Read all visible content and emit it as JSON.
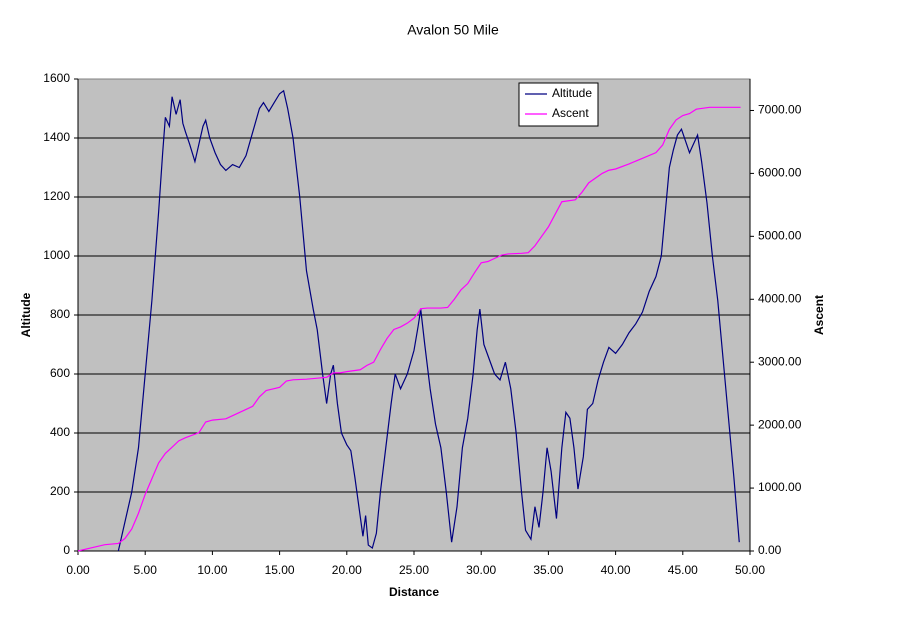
{
  "chart_data": {
    "type": "line",
    "title": "Avalon 50 Mile",
    "x_label": "Distance",
    "y_label": "Altitude",
    "y2_label": "Ascent",
    "xlim": [
      0,
      50
    ],
    "xticks": [
      {
        "value": 0,
        "label": "0.00"
      },
      {
        "value": 5,
        "label": "5.00"
      },
      {
        "value": 10,
        "label": "10.00"
      },
      {
        "value": 15,
        "label": "15.00"
      },
      {
        "value": 20,
        "label": "20.00"
      },
      {
        "value": 25,
        "label": "25.00"
      },
      {
        "value": 30,
        "label": "30.00"
      },
      {
        "value": 35,
        "label": "35.00"
      },
      {
        "value": 40,
        "label": "40.00"
      },
      {
        "value": 45,
        "label": "45.00"
      },
      {
        "value": 50,
        "label": "50.00"
      }
    ],
    "ylim": [
      0,
      1600
    ],
    "yticks": [
      0,
      200,
      400,
      600,
      800,
      1000,
      1200,
      1400,
      1600
    ],
    "y2lim": [
      0,
      7500
    ],
    "y2ticks": [
      {
        "value": 0,
        "label": "0.00"
      },
      {
        "value": 1000,
        "label": "1000.00"
      },
      {
        "value": 2000,
        "label": "2000.00"
      },
      {
        "value": 3000,
        "label": "3000.00"
      },
      {
        "value": 4000,
        "label": "4000.00"
      },
      {
        "value": 5000,
        "label": "5000.00"
      },
      {
        "value": 6000,
        "label": "6000.00"
      },
      {
        "value": 7000,
        "label": "7000.00"
      }
    ],
    "grid": true,
    "legend": "top-right",
    "series": [
      {
        "name": "Altitude",
        "color": "#000080",
        "x": [
          3.0,
          3.5,
          4.0,
          4.5,
          5.0,
          5.5,
          6.0,
          6.3,
          6.5,
          6.8,
          7.0,
          7.3,
          7.6,
          7.8,
          8.0,
          8.3,
          8.7,
          9.0,
          9.3,
          9.5,
          9.8,
          10.2,
          10.6,
          11.0,
          11.5,
          12.0,
          12.5,
          13.0,
          13.5,
          13.8,
          14.2,
          14.6,
          15.0,
          15.3,
          15.6,
          16.0,
          16.5,
          17.0,
          17.5,
          17.8,
          18.2,
          18.5,
          18.8,
          19.0,
          19.3,
          19.6,
          20.0,
          20.3,
          20.6,
          20.9,
          21.2,
          21.4,
          21.6,
          21.9,
          22.2,
          22.5,
          22.9,
          23.3,
          23.6,
          24.0,
          24.5,
          25.0,
          25.3,
          25.5,
          25.8,
          26.2,
          26.6,
          27.0,
          27.4,
          27.8,
          28.2,
          28.6,
          29.0,
          29.4,
          29.7,
          29.9,
          30.2,
          30.6,
          31.0,
          31.4,
          31.8,
          32.2,
          32.6,
          33.0,
          33.3,
          33.7,
          34.0,
          34.3,
          34.6,
          34.9,
          35.2,
          35.6,
          36.0,
          36.3,
          36.6,
          36.9,
          37.2,
          37.6,
          37.9,
          38.3,
          38.7,
          39.1,
          39.5,
          40.0,
          40.5,
          41.0,
          41.5,
          42.0,
          42.5,
          43.0,
          43.4,
          43.7,
          44.0,
          44.3,
          44.6,
          44.9,
          45.2,
          45.5,
          45.8,
          46.1,
          46.4,
          46.8,
          47.2,
          47.6,
          48.0,
          48.4,
          48.8,
          49.2
        ],
        "values": [
          0,
          100,
          200,
          350,
          600,
          850,
          1150,
          1350,
          1470,
          1440,
          1540,
          1480,
          1530,
          1450,
          1420,
          1380,
          1320,
          1380,
          1440,
          1460,
          1400,
          1350,
          1310,
          1290,
          1310,
          1300,
          1340,
          1420,
          1500,
          1520,
          1490,
          1520,
          1550,
          1560,
          1500,
          1400,
          1200,
          950,
          820,
          750,
          600,
          500,
          600,
          630,
          500,
          400,
          360,
          340,
          250,
          150,
          50,
          120,
          20,
          10,
          60,
          200,
          350,
          500,
          600,
          550,
          600,
          680,
          760,
          820,
          700,
          550,
          430,
          350,
          200,
          30,
          150,
          350,
          450,
          600,
          750,
          820,
          700,
          650,
          600,
          580,
          640,
          550,
          400,
          200,
          70,
          40,
          150,
          80,
          200,
          350,
          270,
          110,
          350,
          470,
          450,
          350,
          210,
          320,
          480,
          500,
          580,
          640,
          690,
          670,
          700,
          740,
          770,
          810,
          880,
          930,
          1000,
          1150,
          1300,
          1360,
          1410,
          1430,
          1390,
          1350,
          1380,
          1410,
          1320,
          1180,
          1000,
          850,
          650,
          450,
          250,
          30
        ]
      },
      {
        "name": "Ascent",
        "color": "#ff00ff",
        "axis": "y2",
        "x": [
          0,
          1,
          2,
          3,
          3.5,
          4,
          4.5,
          5,
          5.5,
          6,
          6.5,
          7,
          7.5,
          8,
          9,
          9.5,
          10,
          11,
          12,
          12.5,
          13,
          13.5,
          14,
          15,
          15.5,
          16,
          17,
          18,
          18.5,
          19,
          19.5,
          20,
          21,
          21.5,
          22,
          22.5,
          23,
          23.5,
          24,
          24.5,
          25,
          25.3,
          25.5,
          26,
          27,
          27.5,
          28,
          28.5,
          29,
          29.5,
          30,
          30.5,
          31,
          31.5,
          32,
          33,
          33.5,
          34,
          34.5,
          35,
          35.5,
          36,
          37,
          37.5,
          38,
          39,
          39.5,
          40,
          41,
          42,
          43,
          43.5,
          44,
          44.5,
          45,
          45.5,
          46,
          47,
          49.3
        ],
        "values": [
          0,
          50,
          100,
          120,
          200,
          350,
          600,
          900,
          1150,
          1400,
          1550,
          1650,
          1750,
          1800,
          1880,
          2050,
          2080,
          2100,
          2200,
          2250,
          2300,
          2450,
          2550,
          2600,
          2700,
          2720,
          2730,
          2750,
          2760,
          2830,
          2830,
          2850,
          2880,
          2950,
          3000,
          3200,
          3380,
          3520,
          3560,
          3620,
          3700,
          3780,
          3850,
          3860,
          3860,
          3870,
          4000,
          4150,
          4250,
          4420,
          4580,
          4600,
          4650,
          4700,
          4720,
          4730,
          4740,
          4850,
          5000,
          5150,
          5350,
          5550,
          5580,
          5700,
          5850,
          6000,
          6050,
          6070,
          6150,
          6240,
          6330,
          6450,
          6700,
          6850,
          6920,
          6950,
          7020,
          7050,
          7050
        ]
      }
    ]
  }
}
